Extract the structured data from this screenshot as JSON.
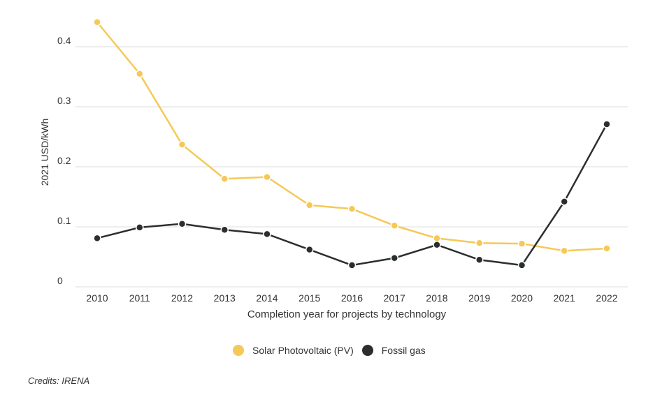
{
  "chart_data": {
    "type": "line",
    "title": "",
    "xlabel": "Completion year for projects by technology",
    "ylabel": "2021 USD/kWh",
    "x": [
      "2010",
      "2011",
      "2012",
      "2013",
      "2014",
      "2015",
      "2016",
      "2017",
      "2018",
      "2019",
      "2020",
      "2021",
      "2022"
    ],
    "ylim": [
      0,
      0.45
    ],
    "yticks": [
      0,
      0.1,
      0.2,
      0.3,
      0.4
    ],
    "ytick_labels": [
      "0",
      "0.1",
      "0.2",
      "0.3",
      "0.4"
    ],
    "grid": true,
    "legend_position": "bottom",
    "series": [
      {
        "name": "Solar Photovoltaic (PV)",
        "color": "#f5c957",
        "values": [
          0.441,
          0.355,
          0.237,
          0.18,
          0.183,
          0.136,
          0.13,
          0.102,
          0.081,
          0.073,
          0.072,
          0.06,
          0.064
        ]
      },
      {
        "name": "Fossil gas",
        "color": "#2b2e30",
        "values": [
          0.081,
          0.099,
          0.105,
          0.095,
          0.088,
          0.062,
          0.036,
          0.048,
          0.07,
          0.045,
          0.036,
          0.142,
          0.271
        ]
      }
    ]
  },
  "credits": "Credits: IRENA"
}
